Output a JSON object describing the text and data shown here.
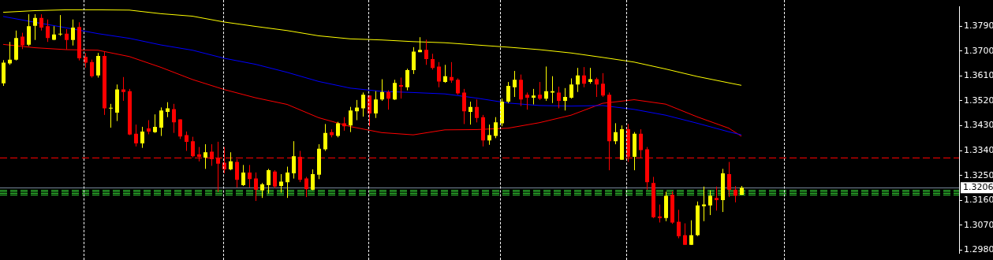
{
  "chart_data": {
    "type": "candlestick",
    "categories": [
      null,
      null,
      null,
      null,
      null,
      null,
      null,
      null,
      null,
      null,
      null,
      null,
      null,
      null,
      null,
      null,
      null,
      null,
      null,
      null,
      null,
      null,
      null,
      null,
      null,
      null,
      null,
      null,
      null,
      null,
      null,
      null,
      null,
      null,
      null,
      null,
      null,
      null,
      null,
      null,
      null,
      null,
      null,
      null,
      null,
      null,
      null,
      null,
      null,
      null,
      null,
      null,
      null,
      null,
      null,
      null,
      null,
      null,
      null,
      null,
      null,
      null,
      null,
      null,
      null,
      null,
      null,
      null,
      null,
      null,
      null,
      null,
      null,
      null,
      null,
      null,
      null,
      null,
      null,
      null,
      null,
      null,
      null,
      null,
      null,
      null,
      null,
      null,
      null,
      null,
      null,
      null,
      null,
      null,
      null,
      null,
      null,
      null,
      null,
      null,
      null,
      null,
      null,
      null,
      null,
      null,
      null,
      null,
      null,
      null,
      null,
      null,
      null,
      null,
      null,
      null,
      null,
      null,
      null,
      null,
      null,
      null,
      null,
      null,
      null,
      null,
      null,
      null,
      null,
      null,
      null,
      null,
      null,
      null,
      null,
      null,
      null,
      null,
      null,
      null,
      null,
      null,
      null,
      null,
      null,
      null,
      null,
      null,
      null,
      null,
      null,
      null
    ],
    "ohlc": [
      [
        1.3583,
        1.3667,
        1.3574,
        1.3658
      ],
      [
        1.3655,
        1.3733,
        1.365,
        1.3669
      ],
      [
        1.3669,
        1.3774,
        1.3666,
        1.3747
      ],
      [
        1.3752,
        1.3766,
        1.3707,
        1.3721
      ],
      [
        1.3723,
        1.3833,
        1.3718,
        1.379
      ],
      [
        1.3791,
        1.3833,
        1.374,
        1.382
      ],
      [
        1.382,
        1.3833,
        1.3774,
        1.3785
      ],
      [
        1.379,
        1.3814,
        1.3733,
        1.3747
      ],
      [
        1.3741,
        1.379,
        1.3739,
        1.376
      ],
      [
        1.3762,
        1.383,
        1.3755,
        1.3763
      ],
      [
        1.3763,
        1.3779,
        1.3706,
        1.374
      ],
      [
        1.374,
        1.3814,
        1.372,
        1.3785
      ],
      [
        1.3787,
        1.3804,
        1.3666,
        1.3674
      ],
      [
        1.3679,
        1.3693,
        1.364,
        1.3658
      ],
      [
        1.366,
        1.3669,
        1.3604,
        1.3609
      ],
      [
        1.3612,
        1.3693,
        1.3604,
        1.3682
      ],
      [
        1.3682,
        1.3698,
        1.3469,
        1.3493
      ],
      [
        1.3494,
        1.3509,
        1.3423,
        1.3495
      ],
      [
        1.3477,
        1.3579,
        1.3447,
        1.3561
      ],
      [
        1.3561,
        1.3606,
        1.352,
        1.3552
      ],
      [
        1.3555,
        1.3563,
        1.3396,
        1.3398
      ],
      [
        1.3401,
        1.3434,
        1.3355,
        1.3366
      ],
      [
        1.3366,
        1.3426,
        1.335,
        1.3409
      ],
      [
        1.342,
        1.345,
        1.3399,
        1.3409
      ],
      [
        1.3407,
        1.3471,
        1.3404,
        1.3426
      ],
      [
        1.3423,
        1.3496,
        1.3393,
        1.3485
      ],
      [
        1.348,
        1.3515,
        1.3461,
        1.3493
      ],
      [
        1.349,
        1.3509,
        1.3404,
        1.3442
      ],
      [
        1.3453,
        1.3453,
        1.3382,
        1.3391
      ],
      [
        1.3396,
        1.3409,
        1.3339,
        1.3372
      ],
      [
        1.3374,
        1.339,
        1.3315,
        1.332
      ],
      [
        1.3326,
        1.3353,
        1.3301,
        1.3318
      ],
      [
        1.3315,
        1.3363,
        1.3274,
        1.3334
      ],
      [
        1.3336,
        1.3363,
        1.3285,
        1.3309
      ],
      [
        1.3312,
        1.3372,
        1.3191,
        1.3293
      ],
      [
        1.3296,
        1.3353,
        1.3258,
        1.3272
      ],
      [
        1.3272,
        1.3334,
        1.3269,
        1.3301
      ],
      [
        1.3299,
        1.3309,
        1.3207,
        1.3234
      ],
      [
        1.3215,
        1.3288,
        1.3212,
        1.3261
      ],
      [
        1.3261,
        1.3288,
        1.3207,
        1.3237
      ],
      [
        1.3239,
        1.3261,
        1.3158,
        1.3199
      ],
      [
        1.3196,
        1.3223,
        1.3169,
        1.3218
      ],
      [
        1.3215,
        1.3274,
        1.3185,
        1.3269
      ],
      [
        1.3264,
        1.3269,
        1.3204,
        1.321
      ],
      [
        1.3212,
        1.3255,
        1.3188,
        1.3228
      ],
      [
        1.3226,
        1.3282,
        1.3169,
        1.3261
      ],
      [
        1.3258,
        1.3374,
        1.3239,
        1.332
      ],
      [
        1.3318,
        1.3339,
        1.3226,
        1.3234
      ],
      [
        1.3239,
        1.3245,
        1.3172,
        1.3201
      ],
      [
        1.3199,
        1.3272,
        1.3196,
        1.3255
      ],
      [
        1.3253,
        1.3363,
        1.3237,
        1.3347
      ],
      [
        1.3345,
        1.3436,
        1.3339,
        1.3404
      ],
      [
        1.3407,
        1.3417,
        1.3388,
        1.3396
      ],
      [
        1.3393,
        1.3444,
        1.3388,
        1.3439
      ],
      [
        1.3439,
        1.3461,
        1.3412,
        1.3428
      ],
      [
        1.3431,
        1.3498,
        1.3407,
        1.3485
      ],
      [
        1.3482,
        1.3523,
        1.345,
        1.3496
      ],
      [
        1.3493,
        1.355,
        1.3463,
        1.3542
      ],
      [
        1.3539,
        1.3539,
        1.3428,
        1.3474
      ],
      [
        1.3474,
        1.3555,
        1.3458,
        1.3525
      ],
      [
        1.3525,
        1.3598,
        1.352,
        1.3552
      ],
      [
        1.3552,
        1.3558,
        1.3488,
        1.3528
      ],
      [
        1.3525,
        1.3596,
        1.3523,
        1.3585
      ],
      [
        1.3577,
        1.3604,
        1.3528,
        1.3571
      ],
      [
        1.3569,
        1.3636,
        1.3558,
        1.3631
      ],
      [
        1.3631,
        1.3714,
        1.3617,
        1.3698
      ],
      [
        1.3696,
        1.375,
        1.3696,
        1.3704
      ],
      [
        1.3704,
        1.3741,
        1.365,
        1.3671
      ],
      [
        1.3671,
        1.369,
        1.3633,
        1.3639
      ],
      [
        1.3644,
        1.366,
        1.3569,
        1.359
      ],
      [
        1.3588,
        1.365,
        1.3585,
        1.3609
      ],
      [
        1.3606,
        1.366,
        1.3585,
        1.3593
      ],
      [
        1.3596,
        1.3601,
        1.3542,
        1.3547
      ],
      [
        1.355,
        1.3563,
        1.3436,
        1.3482
      ],
      [
        1.348,
        1.3517,
        1.3434,
        1.3498
      ],
      [
        1.3498,
        1.3525,
        1.3442,
        1.3458
      ],
      [
        1.3461,
        1.3469,
        1.3355,
        1.3377
      ],
      [
        1.3377,
        1.3434,
        1.3361,
        1.3396
      ],
      [
        1.3393,
        1.3461,
        1.3385,
        1.3442
      ],
      [
        1.3439,
        1.3528,
        1.3428,
        1.3517
      ],
      [
        1.3517,
        1.3588,
        1.3512,
        1.3574
      ],
      [
        1.3569,
        1.3628,
        1.3534,
        1.3596
      ],
      [
        1.3596,
        1.3615,
        1.3501,
        1.3525
      ],
      [
        1.3542,
        1.355,
        1.3488,
        1.3531
      ],
      [
        1.3531,
        1.3563,
        1.3507,
        1.3539
      ],
      [
        1.3542,
        1.3588,
        1.3523,
        1.3528
      ],
      [
        1.3528,
        1.3644,
        1.352,
        1.3555
      ],
      [
        1.355,
        1.3609,
        1.3512,
        1.3555
      ],
      [
        1.355,
        1.3571,
        1.3493,
        1.352
      ],
      [
        1.352,
        1.3566,
        1.3485,
        1.3534
      ],
      [
        1.3531,
        1.3601,
        1.3528,
        1.3579
      ],
      [
        1.3579,
        1.3639,
        1.3552,
        1.3612
      ],
      [
        1.3612,
        1.3642,
        1.3569,
        1.3582
      ],
      [
        1.3588,
        1.3639,
        1.3582,
        1.3598
      ],
      [
        1.3598,
        1.3604,
        1.3534,
        1.3579
      ],
      [
        1.3582,
        1.362,
        1.3534,
        1.3539
      ],
      [
        1.3542,
        1.355,
        1.3269,
        1.3374
      ],
      [
        1.3374,
        1.3439,
        1.3363,
        1.3407
      ],
      [
        1.3307,
        1.3431,
        1.3307,
        1.3417
      ],
      [
        1.3417,
        1.3436,
        1.3299,
        1.3318
      ],
      [
        1.3318,
        1.3407,
        1.3269,
        1.3401
      ],
      [
        1.3401,
        1.3417,
        1.3315,
        1.3342
      ],
      [
        1.3345,
        1.3353,
        1.3199,
        1.3226
      ],
      [
        1.3223,
        1.3245,
        1.3096,
        1.3099
      ],
      [
        1.3102,
        1.3145,
        1.308,
        1.3096
      ],
      [
        1.3096,
        1.3191,
        1.3085,
        1.3177
      ],
      [
        1.318,
        1.3193,
        1.3075,
        1.308
      ],
      [
        1.3083,
        1.3126,
        1.3023,
        1.3031
      ],
      [
        1.3034,
        1.3077,
        1.2999,
        1.2999
      ],
      [
        1.2999,
        1.3088,
        1.2999,
        1.3034
      ],
      [
        1.3034,
        1.3156,
        1.3031,
        1.3142
      ],
      [
        1.3139,
        1.321,
        1.3085,
        1.3145
      ],
      [
        1.3142,
        1.3196,
        1.3107,
        1.3177
      ],
      [
        1.3169,
        1.321,
        1.3123,
        1.3161
      ],
      [
        1.3161,
        1.3274,
        1.3118,
        1.3258
      ],
      [
        1.3255,
        1.3299,
        1.3172,
        1.3199
      ],
      [
        1.3199,
        1.3212,
        1.3153,
        1.3177
      ],
      [
        1.318,
        1.3212,
        1.318,
        1.3206
      ],
      null,
      null,
      null,
      null,
      null,
      null,
      null,
      null,
      null,
      null,
      null,
      null,
      null,
      null,
      null,
      null,
      null,
      null,
      null,
      null,
      null,
      null,
      null,
      null,
      null,
      null,
      null,
      null,
      null,
      null,
      null,
      null,
      null,
      null
    ],
    "colors": [
      "#ffff00",
      "#ffff00",
      "#ffff00",
      "#ff0000",
      "#ffff00",
      "#ffff00",
      "#ff0000",
      "#ff0000",
      "#ffff00",
      "#ffff00",
      "#ff0000",
      "#ffff00",
      "#ff0000",
      "#ff0000",
      "#ff0000",
      "#ffff00",
      "#ff0000",
      "#ffff00",
      "#ffff00",
      "#ff0000",
      "#ff0000",
      "#ff0000",
      "#ffff00",
      "#ff0000",
      "#ffff00",
      "#ffff00",
      "#ffff00",
      "#ff0000",
      "#ff0000",
      "#ff0000",
      "#ff0000",
      "#ff0000",
      "#ffff00",
      "#ff0000",
      "#ff0000",
      "#ff0000",
      "#ffff00",
      "#ff0000",
      "#ffff00",
      "#ff0000",
      "#ff0000",
      "#ffff00",
      "#ffff00",
      "#ff0000",
      "#ffff00",
      "#ffff00",
      "#ffff00",
      "#ff0000",
      "#ff0000",
      "#ffff00",
      "#ffff00",
      "#ffff00",
      "#ff0000",
      "#ffff00",
      "#ff0000",
      "#ffff00",
      "#ffff00",
      "#ffff00",
      "#ff0000",
      "#ffff00",
      "#ffff00",
      "#ff0000",
      "#ffff00",
      "#ff0000",
      "#ffff00",
      "#ffff00",
      "#ffff00",
      "#ff0000",
      "#ff0000",
      "#ff0000",
      "#ffff00",
      "#ff0000",
      "#ff0000",
      "#ff0000",
      "#ffff00",
      "#ff0000",
      "#ff0000",
      "#ffff00",
      "#ffff00",
      "#ffff00",
      "#ffff00",
      "#ffff00",
      "#ff0000",
      "#ff0000",
      "#ffff00",
      "#ff0000",
      "#ffff00",
      "#ffff00",
      "#ff0000",
      "#ffff00",
      "#ffff00",
      "#ffff00",
      "#ff0000",
      "#ffff00",
      "#ff0000",
      "#ff0000",
      "#ff0000",
      "#ffff00",
      "#ffff00",
      "#ff0000",
      "#ffff00",
      "#ff0000",
      "#ff0000",
      "#ff0000",
      "#ff0000",
      "#ffff00",
      "#ff0000",
      "#ff0000",
      "#ff0000",
      "#ffff00",
      "#ffff00",
      "#ffff00",
      "#ffff00",
      "#ff0000",
      "#ffff00",
      "#ff0000",
      "#ff0000",
      "#ffff00",
      null,
      null,
      null,
      null,
      null,
      null,
      null,
      null,
      null,
      null,
      null,
      null,
      null,
      null,
      null,
      null,
      null,
      null,
      null,
      null,
      null,
      null,
      null,
      null,
      null,
      null,
      null,
      null,
      null,
      null,
      null,
      null,
      null,
      null
    ],
    "series": [
      {
        "type": "line",
        "color": "#ffff00",
        "values": [
          1.384,
          null,
          null,
          null,
          null,
          1.3846,
          null,
          null,
          null,
          null,
          1.3849,
          null,
          null,
          null,
          null,
          1.3849,
          null,
          null,
          null,
          null,
          1.3848,
          null,
          null,
          null,
          null,
          1.3835,
          null,
          null,
          null,
          null,
          1.3826,
          null,
          null,
          null,
          null,
          1.3805,
          null,
          null,
          null,
          null,
          1.3789,
          null,
          null,
          null,
          null,
          1.3774,
          null,
          null,
          null,
          null,
          1.3755,
          null,
          null,
          null,
          null,
          1.3744,
          null,
          null,
          null,
          null,
          1.374,
          null,
          null,
          null,
          null,
          1.3734,
          null,
          null,
          null,
          null,
          1.373,
          null,
          null,
          null,
          null,
          1.3722,
          null,
          null,
          null,
          null,
          1.3714,
          null,
          null,
          null,
          null,
          1.3705,
          null,
          null,
          null,
          null,
          1.3693,
          null,
          null,
          null,
          null,
          1.3677,
          null,
          null,
          null,
          null,
          1.366,
          null,
          null,
          null,
          null,
          1.3635,
          null,
          null,
          null,
          null,
          1.3608,
          null,
          null,
          null,
          null,
          1.3585,
          null,
          1.3576,
          null,
          null,
          null,
          null,
          null,
          null,
          null,
          null,
          null,
          null,
          null,
          null,
          null,
          null,
          null,
          null,
          null,
          null,
          null,
          null,
          null,
          null,
          null,
          null,
          null,
          null,
          null,
          null,
          null,
          null,
          null,
          null,
          null,
          null
        ]
      },
      {
        "type": "line",
        "color": "#0000ff",
        "values": [
          1.3825,
          null,
          null,
          null,
          null,
          1.3804,
          null,
          null,
          null,
          null,
          1.3784,
          null,
          null,
          null,
          null,
          1.3763,
          null,
          null,
          null,
          null,
          1.3746,
          null,
          null,
          null,
          null,
          1.3722,
          null,
          null,
          null,
          null,
          1.3703,
          null,
          null,
          null,
          null,
          1.3674,
          null,
          null,
          null,
          null,
          1.3652,
          null,
          null,
          null,
          null,
          1.3623,
          null,
          null,
          null,
          null,
          1.359,
          null,
          null,
          null,
          null,
          1.3566,
          null,
          null,
          null,
          null,
          1.3554,
          null,
          null,
          null,
          null,
          1.355,
          null,
          null,
          null,
          null,
          1.3545,
          null,
          null,
          null,
          null,
          1.353,
          null,
          null,
          null,
          null,
          1.3512,
          null,
          null,
          null,
          null,
          1.3503,
          null,
          null,
          null,
          null,
          1.3501,
          null,
          null,
          null,
          null,
          1.3503,
          null,
          null,
          null,
          null,
          1.3489,
          null,
          null,
          null,
          null,
          1.3468,
          null,
          null,
          null,
          null,
          1.3439,
          null,
          null,
          null,
          null,
          1.3408,
          null,
          1.3397,
          null,
          null,
          null,
          null,
          null,
          null,
          null,
          null,
          null,
          null,
          null,
          null,
          null,
          null,
          null,
          null,
          null,
          null,
          null,
          null,
          null,
          null,
          null,
          null,
          null,
          null,
          null,
          null,
          null,
          null,
          null,
          null,
          null,
          null
        ]
      },
      {
        "type": "line",
        "color": "#ff0000",
        "values": [
          1.3724,
          null,
          null,
          null,
          null,
          1.3712,
          null,
          null,
          null,
          null,
          1.3705,
          null,
          null,
          null,
          null,
          1.3703,
          null,
          null,
          null,
          null,
          1.368,
          null,
          null,
          null,
          null,
          1.3641,
          null,
          null,
          null,
          null,
          1.3597,
          null,
          null,
          null,
          null,
          1.3561,
          null,
          null,
          null,
          null,
          1.3531,
          null,
          null,
          null,
          null,
          1.3507,
          null,
          null,
          null,
          null,
          1.3459,
          null,
          null,
          null,
          null,
          1.3427,
          null,
          null,
          null,
          null,
          1.3405,
          null,
          null,
          null,
          null,
          1.3397,
          null,
          null,
          null,
          null,
          1.3415,
          null,
          null,
          null,
          null,
          1.3416,
          null,
          null,
          null,
          null,
          1.3421,
          null,
          null,
          null,
          null,
          1.3441,
          null,
          null,
          null,
          null,
          1.3468,
          null,
          null,
          null,
          null,
          1.3511,
          null,
          null,
          null,
          null,
          1.3524,
          null,
          null,
          null,
          null,
          1.3508,
          null,
          null,
          null,
          null,
          1.3462,
          null,
          null,
          null,
          null,
          1.3421,
          null,
          1.3392,
          null,
          null,
          null,
          null,
          null,
          null,
          null,
          null,
          null,
          null,
          null,
          null,
          null,
          null,
          null,
          null,
          null,
          null,
          null,
          null,
          null,
          null,
          null,
          null,
          null,
          null,
          null,
          null,
          null,
          null,
          null,
          null,
          null,
          null
        ]
      }
    ],
    "ylim": [
      1.2969,
      1.386
    ],
    "yticks": [
      {
        "value": 1.379,
        "label": "1.3790"
      },
      {
        "value": 1.37,
        "label": "1.3700"
      },
      {
        "value": 1.361,
        "label": "1.3610"
      },
      {
        "value": 1.352,
        "label": "1.3520"
      },
      {
        "value": 1.343,
        "label": "1.3430"
      },
      {
        "value": 1.334,
        "label": "1.3340"
      },
      {
        "value": 1.325,
        "label": "1.3250"
      },
      {
        "value": 1.316,
        "label": "1.3160"
      },
      {
        "value": 1.307,
        "label": "1.3070"
      },
      {
        "value": 1.298,
        "label": "1.2980"
      }
    ],
    "ref_lines": [
      {
        "axis": "y",
        "value": 1.3314,
        "color": "#ff0000",
        "line_style": "dashed"
      },
      {
        "axis": "y",
        "value": 1.3197,
        "color": "#32cd32",
        "line_style": "dashed"
      },
      {
        "axis": "y",
        "value": 1.3192,
        "color": "#32cd32",
        "line_style": "dashed"
      },
      {
        "axis": "y",
        "value": 1.3186,
        "color": "#32cd32",
        "line_style": "dashed"
      },
      {
        "axis": "y",
        "value": 1.3181,
        "color": "#32cd32",
        "line_style": "dashed"
      },
      {
        "axis": "y",
        "value": 1.3206,
        "label": "1.3206",
        "color": "#778899",
        "line_style": "solid"
      }
    ],
    "grid": false,
    "legend": false,
    "tick_labels": "y"
  }
}
